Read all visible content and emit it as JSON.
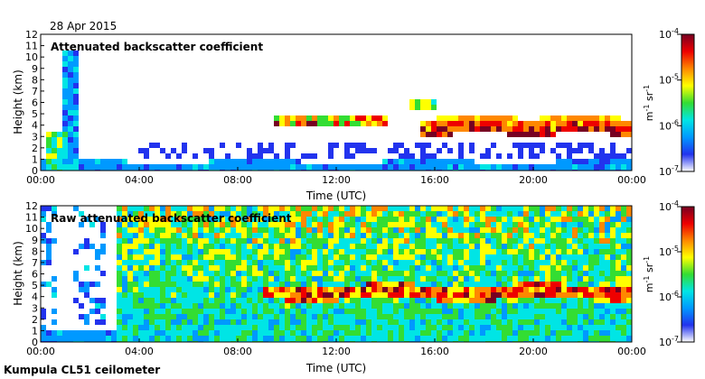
{
  "figure": {
    "date_label": "28 Apr 2015",
    "footer_label": "Kumpula CL51 ceilometer"
  },
  "colorbar": {
    "unit_base": "m",
    "unit_exp1": "-1",
    "unit_mid": " sr",
    "unit_exp2": "-1",
    "tick_labels": [
      {
        "base": "10",
        "exp": "-4",
        "value": 0.0001
      },
      {
        "base": "10",
        "exp": "-5",
        "value": 1e-05
      },
      {
        "base": "10",
        "exp": "-6",
        "value": 1e-06
      },
      {
        "base": "10",
        "exp": "-7",
        "value": 1e-07
      }
    ],
    "colors": [
      "#ffffff",
      "#2233ee",
      "#0099ff",
      "#00e5e5",
      "#33dd33",
      "#ffff00",
      "#ff8800",
      "#ee0000",
      "#770022"
    ]
  },
  "chart_data": [
    {
      "type": "heatmap",
      "title": "Attenuated backscatter coefficient",
      "xlabel": "Time (UTC)",
      "ylabel": "Height (km)",
      "x_ticks": [
        "00:00",
        "04:00",
        "08:00",
        "12:00",
        "16:00",
        "20:00",
        "00:00"
      ],
      "y_ticks": [
        0,
        1,
        2,
        3,
        4,
        5,
        6,
        7,
        8,
        9,
        10,
        11,
        12
      ],
      "xlim_hours": [
        0,
        24
      ],
      "ylim_km": [
        0,
        12
      ],
      "features": [
        {
          "name": "boundary layer",
          "t_start": 0,
          "t_end": 24,
          "top_km": 1.5
        },
        {
          "name": "early deep signal",
          "t_start": 0.8,
          "t_end": 1.6,
          "top_km": 10.5
        },
        {
          "name": "cloud base",
          "t_start": 15.5,
          "t_end": 24,
          "base_km": 3.5
        },
        {
          "name": "mid-level cloud",
          "t_start": 9.5,
          "t_end": 14,
          "base_km": 4.5
        }
      ]
    },
    {
      "type": "heatmap",
      "title": "Raw attenuated backscatter coefficient",
      "xlabel": "Time (UTC)",
      "ylabel": "Height (km)",
      "x_ticks": [
        "00:00",
        "04:00",
        "08:00",
        "12:00",
        "16:00",
        "20:00",
        "00:00"
      ],
      "y_ticks": [
        0,
        1,
        2,
        3,
        4,
        5,
        6,
        7,
        8,
        9,
        10,
        11,
        12
      ],
      "xlim_hours": [
        0,
        24
      ],
      "ylim_km": [
        0,
        12
      ],
      "features": [
        {
          "name": "noise field",
          "t_start": 3,
          "t_end": 24,
          "level": "high"
        },
        {
          "name": "cloud base",
          "t_start": 9,
          "t_end": 24,
          "base_km": 4.0
        }
      ]
    }
  ]
}
